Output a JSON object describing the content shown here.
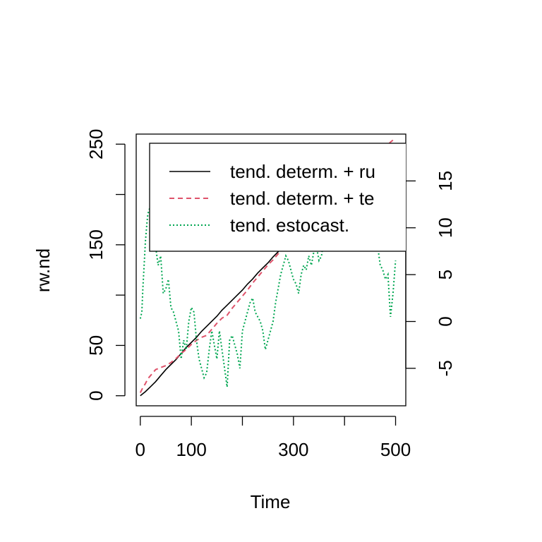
{
  "chart_data": {
    "type": "line",
    "xlabel": "Time",
    "ylabel": "rw.nd",
    "xlim": [
      -8,
      520
    ],
    "ylim": [
      -10,
      260
    ],
    "y2lim": [
      -9,
      20
    ],
    "xticks": [
      0,
      100,
      200,
      300,
      400,
      500
    ],
    "xtick_labels": [
      "0",
      "100",
      "",
      "300",
      "",
      "500"
    ],
    "yticks": [
      0,
      50,
      100,
      150,
      200,
      250
    ],
    "ytick_labels": [
      "0",
      "50",
      "",
      "150",
      "",
      "250"
    ],
    "y2ticks": [
      -5,
      0,
      5,
      10,
      15
    ],
    "y2tick_labels": [
      "-5",
      "0",
      "5",
      "10",
      "15"
    ],
    "legend_position": "top-right",
    "series": [
      {
        "name": "tend. determ. + ru",
        "color": "#000000",
        "dash": "solid",
        "axis": "left",
        "x": [
          0,
          10,
          20,
          30,
          40,
          50,
          60,
          70,
          80,
          90,
          100,
          110,
          120,
          130,
          140,
          150,
          160,
          170,
          180,
          190,
          200,
          210,
          220,
          230,
          240,
          250,
          260,
          270,
          280
        ],
        "y": [
          0,
          4,
          9,
          14,
          20,
          26,
          31,
          36,
          42,
          48,
          53,
          58,
          64,
          69,
          74,
          79,
          85,
          90,
          95,
          100,
          105,
          111,
          116,
          122,
          127,
          132,
          138,
          143,
          149
        ]
      },
      {
        "name": "tend. determ. + te",
        "color": "#DF536B",
        "dash": "dashed",
        "axis": "left",
        "x": [
          0,
          5,
          10,
          15,
          20,
          30,
          40,
          50,
          60,
          70,
          80,
          90,
          100,
          110,
          120,
          130,
          140,
          150,
          160,
          170,
          180,
          190,
          200,
          210,
          220,
          230,
          240,
          250,
          260,
          270,
          280,
          490,
          500
        ],
        "y": [
          3,
          8,
          12,
          17,
          20,
          26,
          28,
          30,
          33,
          37,
          42,
          46,
          51,
          55,
          58,
          60,
          66,
          72,
          77,
          80,
          87,
          93,
          99,
          105,
          112,
          118,
          124,
          130,
          135,
          141,
          148,
          252,
          256
        ]
      },
      {
        "name": "tend. estocast.",
        "color": "#00A651",
        "dash": "dotted",
        "axis": "right",
        "x": [
          0,
          3,
          5,
          8,
          10,
          13,
          15,
          18,
          20,
          25,
          30,
          35,
          40,
          45,
          50,
          55,
          60,
          65,
          70,
          75,
          80,
          85,
          90,
          95,
          100,
          105,
          110,
          115,
          120,
          125,
          130,
          135,
          140,
          145,
          150,
          155,
          160,
          165,
          170,
          175,
          180,
          185,
          190,
          195,
          200,
          205,
          210,
          215,
          220,
          225,
          230,
          235,
          240,
          245,
          250,
          255,
          260,
          265,
          270,
          275,
          280,
          285,
          290,
          295,
          300,
          305,
          310,
          315,
          320,
          325,
          330,
          335,
          340,
          345,
          350,
          355,
          360,
          365,
          370,
          375,
          380,
          385,
          390,
          395,
          400,
          405,
          410,
          415,
          420,
          425,
          430,
          435,
          440,
          445,
          450,
          455,
          460,
          465,
          470,
          475,
          480,
          485,
          490,
          495,
          500
        ],
        "y": [
          0.3,
          1.0,
          3.5,
          6.5,
          8.5,
          10.5,
          11.5,
          12,
          12.5,
          9,
          8,
          6,
          7,
          3,
          3.5,
          4.5,
          1.5,
          1.0,
          0.0,
          -1.0,
          -4.0,
          -2.0,
          -3.0,
          0.0,
          1.5,
          1.0,
          -2.0,
          -4.0,
          -5.0,
          -6.0,
          -5.5,
          -3.0,
          -1.0,
          -2.5,
          -4.0,
          -1.0,
          -3.0,
          -5.0,
          -7.0,
          -2.0,
          -1.5,
          -2.5,
          -3.5,
          -5.0,
          -1.0,
          0.0,
          1.0,
          2.0,
          2.5,
          1.0,
          0.5,
          0.0,
          -1.0,
          -3.0,
          -2.0,
          -1.0,
          0.0,
          2.0,
          3.5,
          5.0,
          6.0,
          7.0,
          6.5,
          5.5,
          4.5,
          4.0,
          3.0,
          5.0,
          6.0,
          5.5,
          7.0,
          6.0,
          7.5,
          8.0,
          6.5,
          7.0,
          9.0,
          8.5,
          10.0,
          11.0,
          12.5,
          13.0,
          12.0,
          13.5,
          14.0,
          12.5,
          13.0,
          14.5,
          15.0,
          13.5,
          14.0,
          12.0,
          13.0,
          11.5,
          11.0,
          10.0,
          9.0,
          8.0,
          6.0,
          5.5,
          4.5,
          5.0,
          0.5,
          3.0,
          6.5
        ]
      }
    ]
  }
}
